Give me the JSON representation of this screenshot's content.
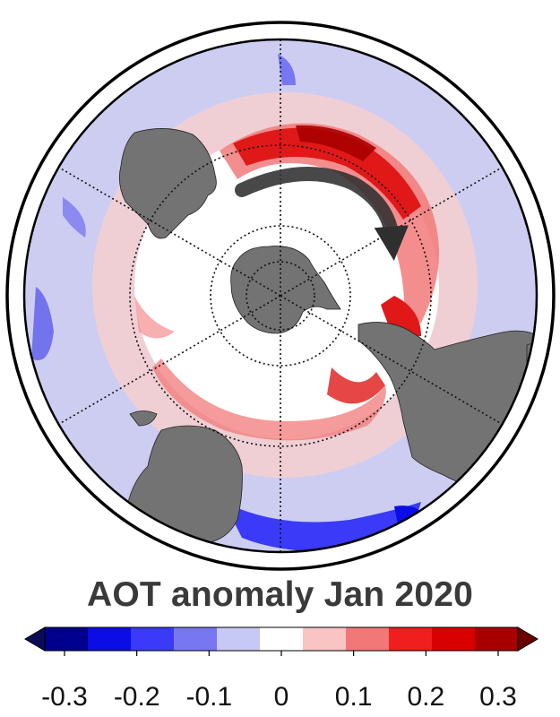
{
  "title": "AOT anomaly Jan 2020",
  "colorbar": {
    "tick_labels": [
      "-0.3",
      "-0.2",
      "-0.1",
      "0",
      "0.1",
      "0.2",
      "0.3"
    ],
    "tick_values": [
      -0.3,
      -0.2,
      -0.1,
      0,
      0.1,
      0.2,
      0.3
    ],
    "range": [
      -0.35,
      0.35
    ],
    "colors": [
      "#0b0b57",
      "#00008e",
      "#0c0ce6",
      "#3a3af8",
      "#7777f2",
      "#c8c8f4",
      "#ffffff",
      "#f8c4c4",
      "#f27878",
      "#f01e1e",
      "#d80000",
      "#a80000",
      "#6a0000"
    ]
  },
  "map": {
    "projection": "south-polar-stereographic",
    "land_color": "#737373",
    "arrow_color": "#2f2f2f"
  }
}
